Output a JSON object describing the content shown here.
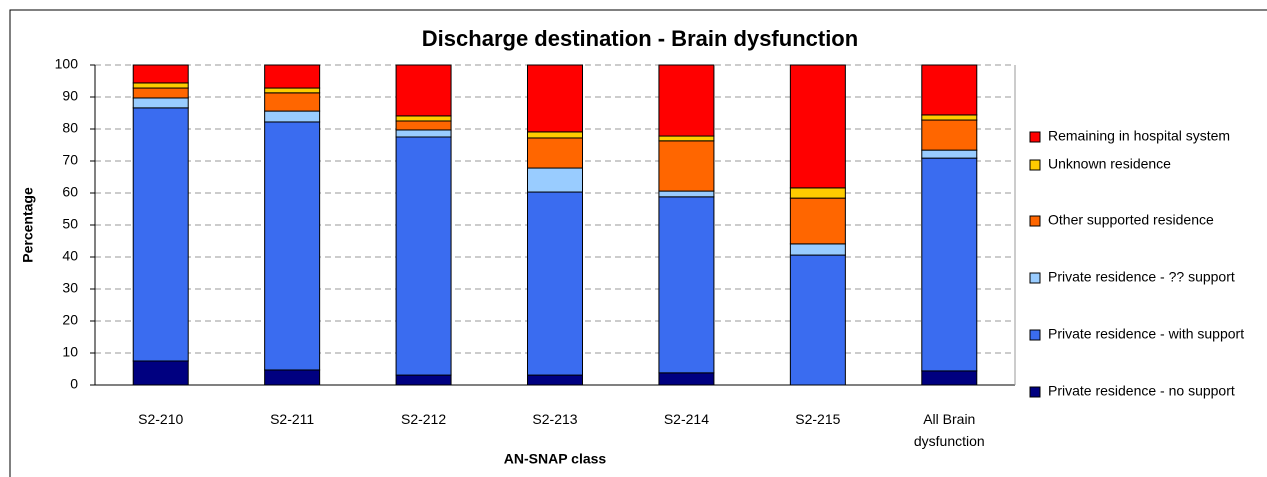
{
  "chart_data": {
    "type": "stacked-bar",
    "title": "Discharge destination - Brain dysfunction",
    "x_label": "AN-SNAP class",
    "y_label": "Percentage",
    "categories": [
      "S2-210",
      "S2-211",
      "S2-212",
      "S2-213",
      "S2-214",
      "S2-215",
      "All Brain dysfunction"
    ],
    "series": [
      {
        "name": "Private residence - no support",
        "color": "#000080",
        "values": [
          7.5,
          4.7,
          3.1,
          3.1,
          3.8,
          0,
          4.4
        ]
      },
      {
        "name": "Private residence - with support",
        "color": "#3a6cf0",
        "values": [
          79.1,
          77.5,
          74.4,
          57.2,
          55,
          40.6,
          66.5
        ]
      },
      {
        "name": "Private residence - ?? support",
        "color": "#99ccff",
        "values": [
          3.1,
          3.4,
          2.2,
          7.5,
          1.8,
          3.5,
          2.5
        ]
      },
      {
        "name": "Other supported residence",
        "color": "#ff6600",
        "values": [
          3.1,
          5.7,
          2.8,
          9.4,
          15.7,
          14.3,
          9.4
        ]
      },
      {
        "name": "Unknown residence",
        "color": "#ffcc00",
        "values": [
          1.6,
          1.5,
          1.6,
          1.9,
          1.5,
          3.2,
          1.6
        ]
      },
      {
        "name": "Remaining in hospital system",
        "color": "#ff0000",
        "values": [
          5.6,
          7.2,
          15.9,
          20.9,
          22.2,
          38.4,
          15.6
        ]
      }
    ],
    "ylim": [
      0,
      100
    ],
    "yticks": [
      0,
      10,
      20,
      30,
      40,
      50,
      60,
      70,
      80,
      90,
      100
    ],
    "grid": true,
    "legend": "right"
  }
}
